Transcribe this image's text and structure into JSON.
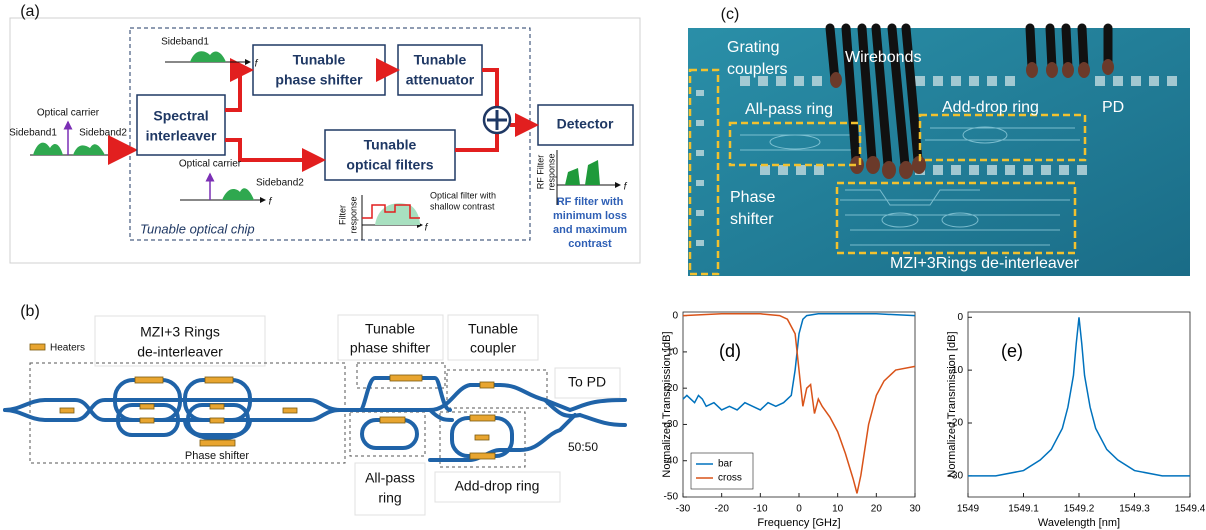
{
  "panel_a": {
    "label": "(a)",
    "input": {
      "carrier": "Optical carrier",
      "sideband1": "Sideband1",
      "sideband2": "Sideband2"
    },
    "upper_spectrum": "Sideband1",
    "freq_axis": "f",
    "blocks": [
      [
        "Spectral",
        "interleaver"
      ],
      [
        "Tunable",
        "phase shifter"
      ],
      [
        "Tunable",
        "attenuator"
      ],
      [
        "Tunable",
        "optical filters"
      ],
      [
        "Detector"
      ]
    ],
    "lower_spectrum": {
      "carrier": "Optical carrier",
      "sideband2": "Sideband2"
    },
    "filter_inset": {
      "ylabel": [
        "Filter",
        "response"
      ],
      "note": [
        "Optical filter with",
        "shallow contrast"
      ]
    },
    "chip_label": "Tunable optical chip",
    "rf_inset": {
      "ylabel": [
        "RF Filter",
        "response"
      ],
      "note": [
        "RF filter with",
        "minimum loss",
        "and maximum",
        "contrast"
      ]
    }
  },
  "panel_c": {
    "label": "(c)",
    "labels": {
      "grating": [
        "Grating",
        "couplers"
      ],
      "wirebonds": "Wirebonds",
      "all_pass": "All-pass ring",
      "add_drop": "Add-drop ring",
      "pd": "PD",
      "phase": [
        "Phase",
        "shifter"
      ],
      "mzi": "MZI+3Rings de-interleaver"
    }
  },
  "panel_b": {
    "label": "(b)",
    "legend": "Heaters",
    "boxes": [
      [
        "MZI+3 Rings",
        "de-interleaver"
      ],
      [
        "Tunable",
        "phase shifter"
      ],
      [
        "Tunable",
        "coupler"
      ],
      [
        "To PD"
      ],
      [
        "All-pass",
        "ring"
      ],
      [
        "Add-drop ring"
      ]
    ],
    "phase_shifter": "Phase shifter",
    "splitter": "50:50"
  },
  "chart_data": [
    {
      "type": "line",
      "annotation": "(d)",
      "x_label": "Frequency [GHz]",
      "y_label": "Normalized Transmission [dB]",
      "xlim": [
        -30,
        30
      ],
      "xticks": [
        -30,
        -20,
        -10,
        0,
        10,
        20,
        30
      ],
      "ylim": [
        -50,
        1
      ],
      "yticks": [
        -50,
        -40,
        -30,
        -20,
        -10,
        0
      ],
      "legend": "lower left",
      "series": [
        {
          "name": "bar",
          "color": "#0072bd",
          "x": [
            -30,
            -29,
            -28,
            -27,
            -26,
            -25,
            -24,
            -22,
            -20,
            -18,
            -16,
            -14,
            -12,
            -10,
            -8,
            -6,
            -4,
            -2,
            -1,
            0,
            1,
            2,
            5,
            10,
            20,
            30
          ],
          "values": [
            -23,
            -22,
            -23,
            -24,
            -22,
            -23,
            -25,
            -24,
            -26,
            -25,
            -26,
            -24,
            -25,
            -26,
            -24,
            -25,
            -24,
            -22,
            -15,
            -5,
            -1,
            0,
            0.5,
            0.5,
            0.5,
            0
          ]
        },
        {
          "name": "cross",
          "color": "#d95319",
          "x": [
            -30,
            -20,
            -10,
            -5,
            -3,
            -1,
            0,
            1,
            2,
            3,
            4,
            5,
            6,
            8,
            10,
            12,
            14,
            15,
            16,
            18,
            20,
            22,
            25,
            30
          ],
          "values": [
            0,
            0.5,
            0.5,
            0,
            -1,
            -5,
            -15,
            -25,
            -20,
            -19,
            -27,
            -23,
            -25,
            -28,
            -32,
            -38,
            -45,
            -49,
            -44,
            -30,
            -22,
            -18,
            -15,
            -14
          ]
        }
      ]
    },
    {
      "type": "line",
      "annotation": "(e)",
      "x_label": "Wavelength [nm]",
      "y_label": "Normalized Transmission [dB]",
      "xlim": [
        1549,
        1549.4
      ],
      "xticks": [
        1549,
        1549.1,
        1549.2,
        1549.3,
        1549.4
      ],
      "ylim": [
        -34,
        1
      ],
      "yticks": [
        -30,
        -20,
        -10,
        0
      ],
      "series": [
        {
          "color": "#0072bd",
          "x": [
            1549,
            1549.05,
            1549.1,
            1549.13,
            1549.15,
            1549.17,
            1549.18,
            1549.19,
            1549.195,
            1549.2,
            1549.205,
            1549.21,
            1549.22,
            1549.23,
            1549.25,
            1549.27,
            1549.3,
            1549.35,
            1549.4
          ],
          "values": [
            -30,
            -30,
            -29,
            -27,
            -25,
            -21,
            -17,
            -11,
            -5,
            0,
            -5,
            -11,
            -17,
            -21,
            -25,
            -27,
            -29,
            -30,
            -30
          ]
        }
      ]
    }
  ]
}
